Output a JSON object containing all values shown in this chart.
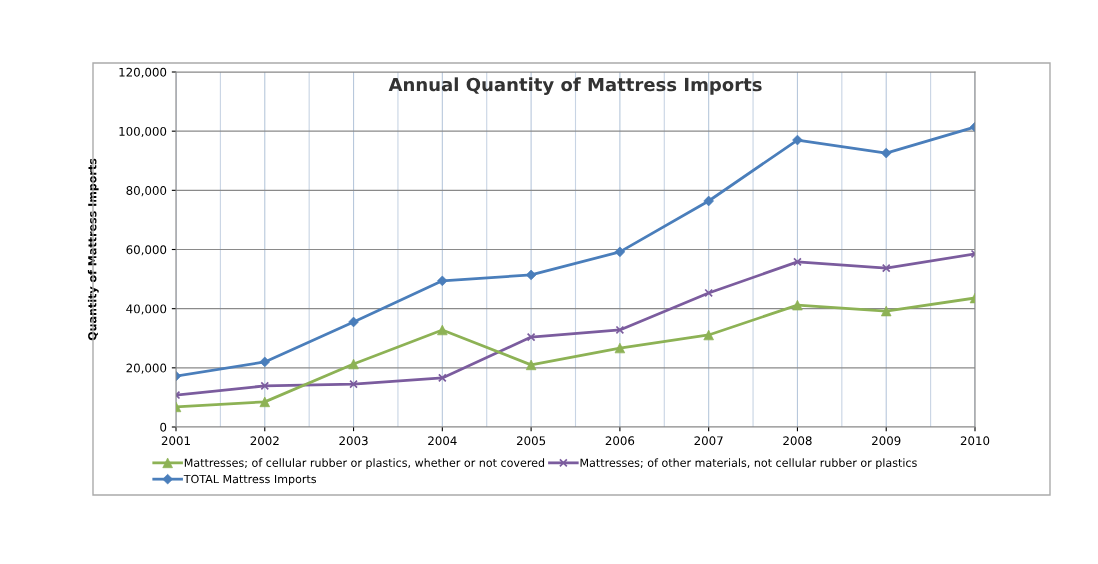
{
  "chart_data": {
    "type": "line",
    "title": "Annual Quantity of Mattress Imports",
    "ylabel": "Quantity of Mattress Imports",
    "x": [
      2001,
      2002,
      2003,
      2004,
      2005,
      2006,
      2007,
      2008,
      2009,
      2010
    ],
    "series": [
      {
        "name": "Mattresses; of cellular rubber or plastics, whether or not covered",
        "color": "#8db255",
        "marker": "triangle",
        "values": [
          6800,
          8500,
          21300,
          32800,
          21000,
          26700,
          31100,
          41200,
          39200,
          43600
        ]
      },
      {
        "name": "Mattresses; of other materials, not cellular rubber or plastics",
        "color": "#7b5c9e",
        "marker": "cross",
        "values": [
          10800,
          13900,
          14500,
          16600,
          30400,
          32800,
          45300,
          55800,
          53700,
          58500
        ]
      },
      {
        "name": "TOTAL Mattress Imports",
        "color": "#4a7ebb",
        "marker": "diamond",
        "values": [
          17200,
          22000,
          35500,
          49400,
          51400,
          59200,
          76400,
          97000,
          92600,
          101400
        ]
      }
    ],
    "xlim": [
      2001,
      2010
    ],
    "xticks": [
      2001,
      2002,
      2003,
      2004,
      2005,
      2006,
      2007,
      2008,
      2009,
      2010
    ],
    "ylim": [
      0,
      120000
    ],
    "yticks": [
      {
        "value": 0,
        "label": "0"
      },
      {
        "value": 20000,
        "label": "20,000"
      },
      {
        "value": 40000,
        "label": "40,000"
      },
      {
        "value": 60000,
        "label": "60,000"
      },
      {
        "value": 80000,
        "label": "80,000"
      },
      {
        "value": 100000,
        "label": "100,000"
      },
      {
        "value": 120000,
        "label": "120,000"
      }
    ],
    "grid": true,
    "legend": "bottom",
    "line_style": "solid"
  }
}
